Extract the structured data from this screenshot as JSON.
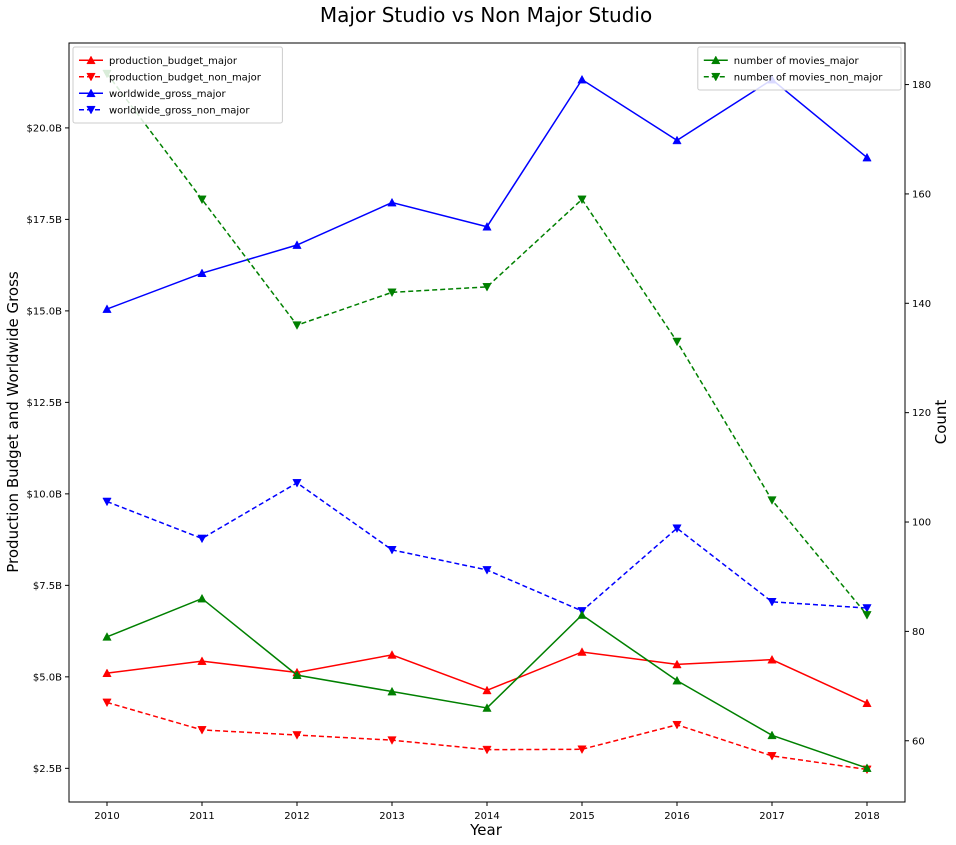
{
  "chart_data": {
    "type": "line",
    "title": "Major Studio vs Non Major Studio",
    "xlabel": "Year",
    "ylabel": "Production Budget and Worldwide Gross",
    "ylabel_right": "Count",
    "x": [
      2010,
      2011,
      2012,
      2013,
      2014,
      2015,
      2016,
      2017,
      2018
    ],
    "ylim": [
      1.58,
      22.32
    ],
    "y2lim": [
      48.8,
      187.6
    ],
    "yticks": [
      2.5,
      5.0,
      7.5,
      10.0,
      12.5,
      15.0,
      17.5,
      20.0
    ],
    "ytick_labels": [
      "$2.5B",
      "$5.0B",
      "$7.5B",
      "$10.0B",
      "$12.5B",
      "$15.0B",
      "$17.5B",
      "$20.0B"
    ],
    "y2ticks": [
      60,
      80,
      100,
      120,
      140,
      160,
      180
    ],
    "y2tick_labels": [
      "60",
      "80",
      "100",
      "120",
      "140",
      "160",
      "180"
    ],
    "grid": false,
    "legend_left_placement": "upper-left",
    "legend_right_placement": "upper-right",
    "series": [
      {
        "name": "production_budget_major",
        "axis": "left",
        "color": "#ff0000",
        "style": "solid",
        "marker": "triangle-up",
        "values": [
          5.1,
          5.43,
          5.12,
          5.6,
          4.63,
          5.68,
          5.34,
          5.47,
          4.28
        ]
      },
      {
        "name": "production_budget_non_major",
        "axis": "left",
        "color": "#ff0000",
        "style": "dashed",
        "marker": "triangle-down",
        "values": [
          4.3,
          3.55,
          3.41,
          3.27,
          3.01,
          3.02,
          3.69,
          2.84,
          2.47
        ]
      },
      {
        "name": "worldwide_gross_major",
        "axis": "left",
        "color": "#0000ff",
        "style": "solid",
        "marker": "triangle-up",
        "values": [
          15.05,
          16.03,
          16.8,
          17.96,
          17.3,
          21.32,
          19.66,
          21.32,
          19.19
        ]
      },
      {
        "name": "worldwide_gross_non_major",
        "axis": "left",
        "color": "#0000ff",
        "style": "dashed",
        "marker": "triangle-down",
        "values": [
          9.79,
          8.78,
          10.3,
          8.47,
          7.92,
          6.8,
          9.06,
          7.05,
          6.88
        ]
      },
      {
        "name": "number of movies_major",
        "axis": "right",
        "color": "#008000",
        "style": "solid",
        "marker": "triangle-up",
        "values": [
          79,
          86,
          72,
          69,
          66,
          83,
          71,
          61,
          55
        ]
      },
      {
        "name": "number of movies_non_major",
        "axis": "right",
        "color": "#008000",
        "style": "dashed",
        "marker": "triangle-down",
        "values": [
          182,
          159,
          136,
          142,
          143,
          159,
          133,
          104,
          83
        ]
      }
    ]
  }
}
